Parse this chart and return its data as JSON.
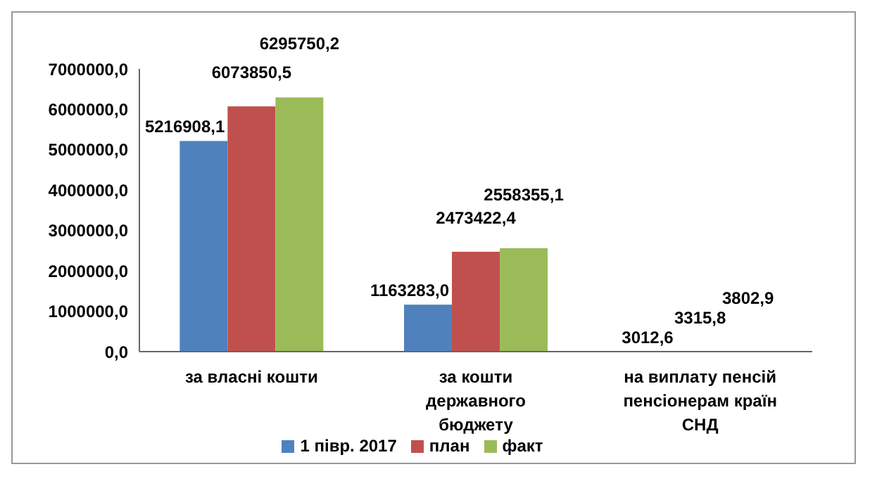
{
  "chart_data": {
    "type": "bar",
    "categories": [
      "за власні  кошти",
      "за кошти державного бюджету",
      "на виплату  пенсій пенсіонерам  країн СНД"
    ],
    "series": [
      {
        "name": "1 півр. 2017",
        "color": "#4f81bd",
        "values": [
          5216908.1,
          1163283.0,
          3012.6
        ],
        "value_labels": [
          "5216908,1",
          "1163283,0",
          "3012,6"
        ]
      },
      {
        "name": "план",
        "color": "#c0504d",
        "values": [
          6073850.5,
          2473422.4,
          3315.8
        ],
        "value_labels": [
          "6073850,5",
          "2473422,4",
          "3315,8"
        ]
      },
      {
        "name": "факт",
        "color": "#9bbb59",
        "values": [
          6295750.2,
          2558355.1,
          3802.9
        ],
        "value_labels": [
          "6295750,2",
          "2558355,1",
          "3802,9"
        ]
      }
    ],
    "ylim": [
      0,
      7000000
    ],
    "yticks": [
      {
        "value": 0,
        "label": "0,0"
      },
      {
        "value": 1000000,
        "label": "1000000,0"
      },
      {
        "value": 2000000,
        "label": "2000000,0"
      },
      {
        "value": 3000000,
        "label": "3000000,0"
      },
      {
        "value": 4000000,
        "label": "4000000,0"
      },
      {
        "value": 5000000,
        "label": "5000000,0"
      },
      {
        "value": 6000000,
        "label": "6000000,0"
      },
      {
        "value": 7000000,
        "label": "7000000,0"
      }
    ],
    "grid": false,
    "legend": "bottom"
  }
}
